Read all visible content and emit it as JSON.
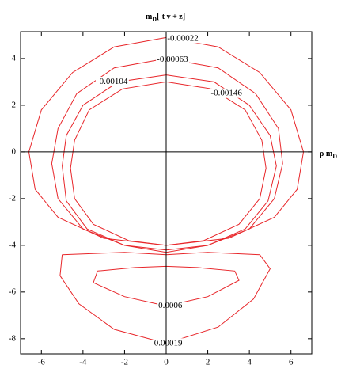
{
  "chart_data": {
    "type": "contour",
    "title": {
      "base": "m",
      "sub": "D",
      "rest": "[-t v + z]"
    },
    "x_label": {
      "base": "ρ m",
      "sub": "D"
    },
    "xlim": [
      -7,
      7
    ],
    "ylim": [
      -8.65,
      5.15
    ],
    "xticks": [
      -6,
      -4,
      -2,
      0,
      2,
      4,
      6
    ],
    "yticks": [
      -8,
      -6,
      -4,
      -2,
      0,
      2,
      4
    ],
    "color": "#e8262a",
    "contours": [
      {
        "level": -0.00022,
        "x": [
          0,
          2.5,
          4.5,
          6,
          6.6,
          6.3,
          5.2,
          3,
          0,
          -3,
          -5.2,
          -6.3,
          -6.6,
          -6,
          -4.5,
          -2.5,
          0
        ],
        "y": [
          4.9,
          4.5,
          3.4,
          1.8,
          0,
          -1.6,
          -2.8,
          -3.7,
          -4.0,
          -3.7,
          -2.8,
          -1.6,
          0,
          1.8,
          3.4,
          4.5,
          4.9
        ]
      },
      {
        "level": -0.00063,
        "x": [
          0,
          2.5,
          4.3,
          5.4,
          5.6,
          5.2,
          4,
          2,
          0,
          -2,
          -4,
          -5.2,
          -5.5,
          -5.2,
          -4.3,
          -2.5,
          0
        ],
        "y": [
          4.0,
          3.6,
          2.5,
          1,
          -0.5,
          -2,
          -3.3,
          -4.0,
          -4.2,
          -4.0,
          -3.3,
          -2,
          -0.5,
          1,
          2.5,
          3.6,
          4.0
        ]
      },
      {
        "level": -0.00104,
        "x": [
          0,
          2.3,
          4.0,
          5.0,
          5.3,
          4.9,
          3.8,
          2,
          0,
          -2,
          -3.8,
          -4.8,
          -5.0,
          -4.8,
          -4.0,
          -2.3,
          0
        ],
        "y": [
          3.3,
          3.0,
          2.0,
          0.7,
          -0.6,
          -2.1,
          -3.3,
          -4.0,
          -4.3,
          -4.0,
          -3.3,
          -2.1,
          -0.6,
          0.7,
          2.0,
          3.0,
          3.3
        ]
      },
      {
        "level": -0.00146,
        "x": [
          0,
          2.2,
          3.8,
          4.6,
          4.8,
          4.5,
          3.5,
          1.8,
          0,
          -1.8,
          -3.5,
          -4.4,
          -4.6,
          -4.4,
          -3.7,
          -2.1,
          0
        ],
        "y": [
          3.0,
          2.7,
          1.8,
          0.5,
          -0.7,
          -2.0,
          -3.1,
          -3.8,
          -4.0,
          -3.8,
          -3.1,
          -2.0,
          -0.7,
          0.5,
          1.8,
          2.7,
          3.0
        ]
      },
      {
        "level": 0.0006,
        "x": [
          -3.3,
          -1.5,
          0,
          1.5,
          3.3,
          3.5,
          2,
          0,
          -2,
          -3.5,
          -3.3
        ],
        "y": [
          -5.1,
          -4.95,
          -4.9,
          -4.95,
          -5.1,
          -5.5,
          -6.2,
          -6.6,
          -6.2,
          -5.6,
          -5.1
        ]
      },
      {
        "level": 0.00019,
        "x": [
          -5,
          -2,
          0,
          2,
          4.5,
          5,
          4.2,
          2.5,
          0,
          -2.5,
          -4.2,
          -5.1,
          -5
        ],
        "y": [
          -4.4,
          -4.3,
          -4.4,
          -4.3,
          -4.4,
          -5,
          -6.3,
          -7.5,
          -8.2,
          -7.6,
          -6.5,
          -5.3,
          -4.4
        ]
      }
    ]
  }
}
